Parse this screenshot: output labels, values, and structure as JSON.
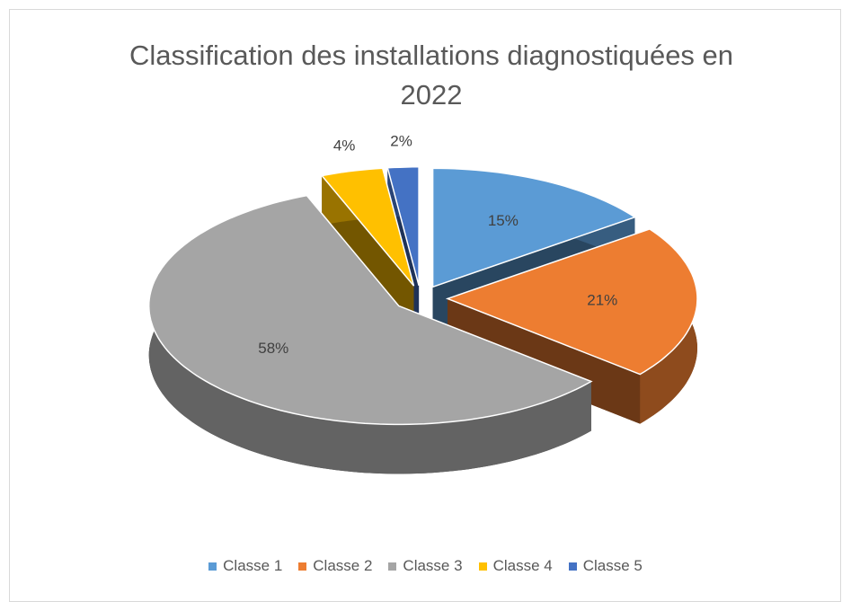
{
  "chart_data": {
    "type": "pie",
    "title": "Classification des installations diagnostiquées en 2022",
    "categories": [
      "Classe 1",
      "Classe 2",
      "Classe 3",
      "Classe 4",
      "Classe 5"
    ],
    "values": [
      15,
      21,
      58,
      4,
      2
    ],
    "value_labels": [
      "15%",
      "21%",
      "58%",
      "4%",
      "2%"
    ],
    "colors": [
      "#5b9bd5",
      "#ed7d31",
      "#a5a5a5",
      "#ffc000",
      "#4472c4"
    ],
    "legend": "bottom"
  }
}
